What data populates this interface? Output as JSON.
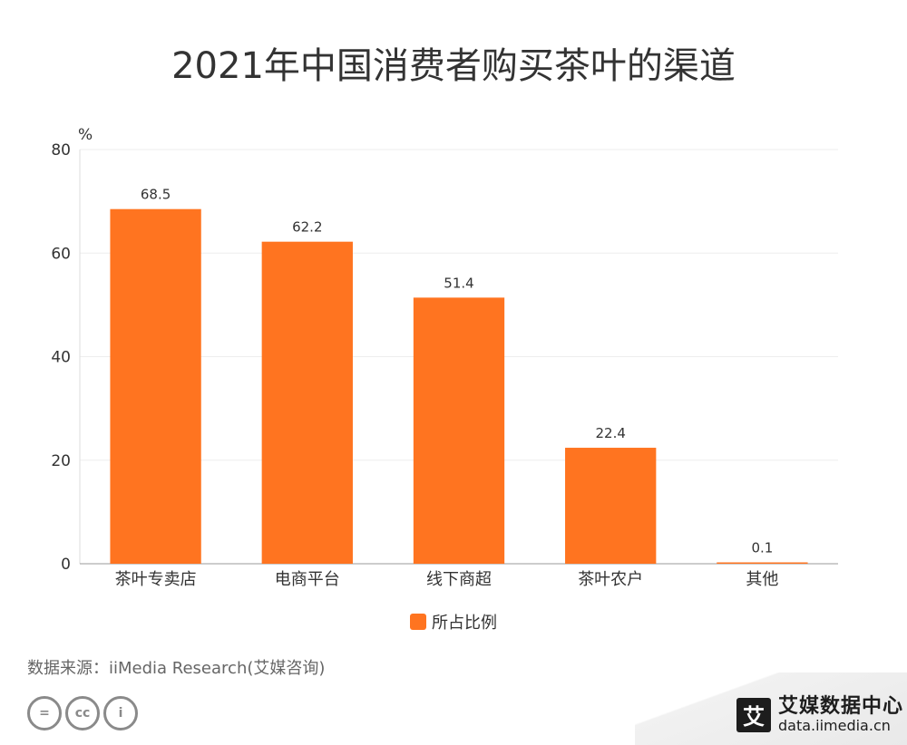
{
  "title": "2021年中国消费者购买茶叶的渠道",
  "source": "数据来源：iiMedia Research(艾媒咨询)",
  "brand": {
    "logo_char": "艾",
    "name": "艾媒数据中心",
    "url": "data.iimedia.cn"
  },
  "license_icons": [
    "=",
    "cc",
    "i"
  ],
  "chart_data": {
    "type": "bar",
    "categories": [
      "茶叶专卖店",
      "电商平台",
      "线下商超",
      "茶叶农户",
      "其他"
    ],
    "series": [
      {
        "name": "所占比例",
        "values": [
          68.5,
          62.2,
          51.4,
          22.4,
          0.1
        ],
        "color": "#FF7420"
      }
    ],
    "ylabel": "%",
    "ylim": [
      0,
      80
    ],
    "yticks": [
      0,
      20,
      40,
      60,
      80
    ],
    "grid": true,
    "legend": "bottom",
    "data_labels": true
  }
}
